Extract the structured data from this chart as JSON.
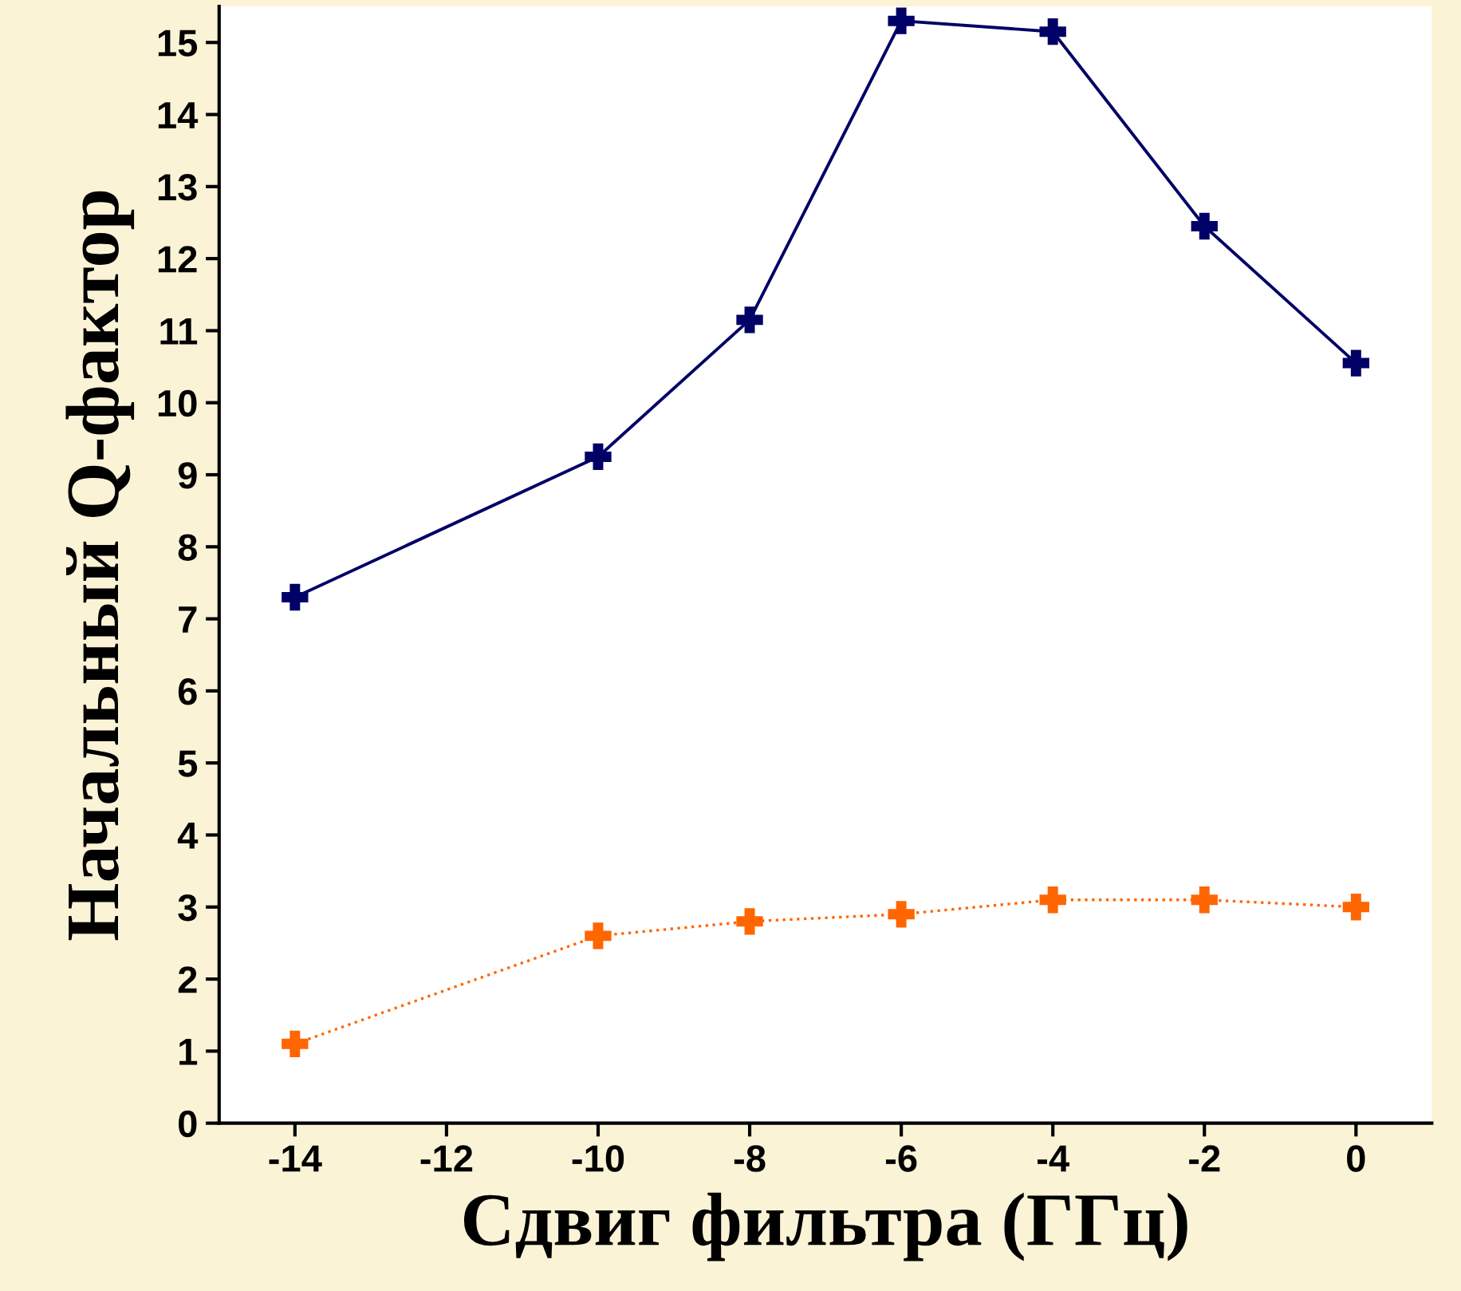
{
  "chart_data": {
    "type": "line",
    "xlabel": "Сдвиг фильтра (ГГц)",
    "ylabel": "Начальный Q-фактор",
    "x": [
      -14,
      -10,
      -8,
      -6,
      -4,
      -2,
      0
    ],
    "series": [
      {
        "color": "#000066",
        "values": [
          7.3,
          9.25,
          11.15,
          15.3,
          15.15,
          12.45,
          10.55
        ],
        "line_style": "solid"
      },
      {
        "color": "#ff6600",
        "values": [
          1.1,
          2.6,
          2.8,
          2.9,
          3.1,
          3.1,
          3.0
        ],
        "line_style": "dotted"
      }
    ],
    "xlim": [
      -15,
      1
    ],
    "xticks": [
      -14,
      -12,
      -10,
      -8,
      -6,
      -4,
      -2,
      0
    ],
    "ylim": [
      0,
      15.5
    ],
    "yticks": [
      0,
      1,
      2,
      3,
      4,
      5,
      6,
      7,
      8,
      9,
      10,
      11,
      12,
      13,
      14,
      15
    ],
    "marker": "cross",
    "grid": false,
    "legend": false
  }
}
